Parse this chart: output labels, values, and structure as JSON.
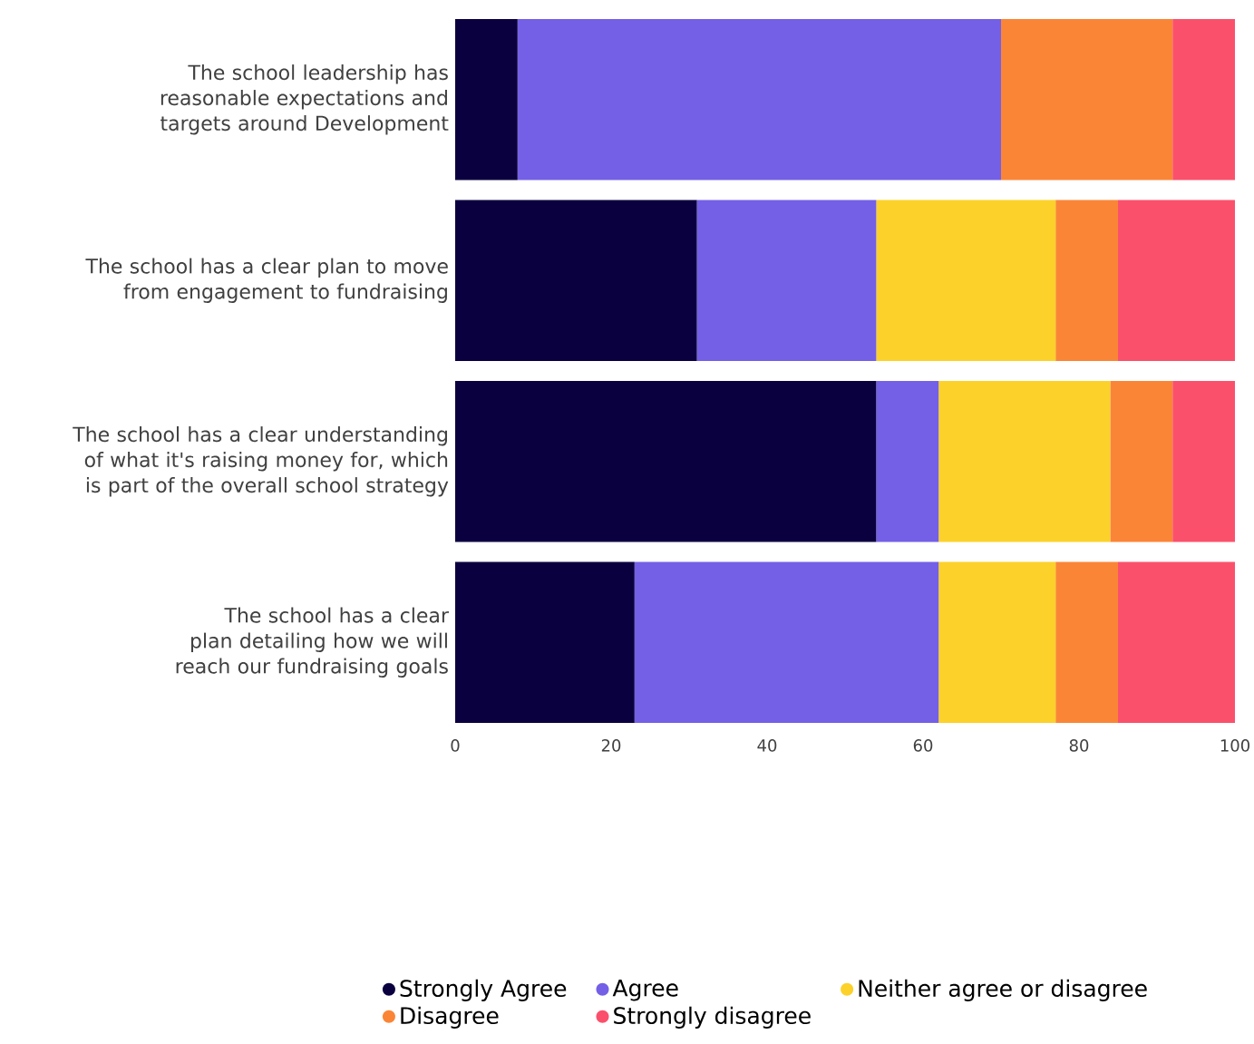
{
  "chart_data": {
    "type": "bar",
    "orientation": "horizontal",
    "stacked": true,
    "categories": [
      "The school leadership has reasonable expectations and targets around Development",
      "The school has a clear plan to move from engagement to fundraising",
      "The school has a clear understanding of what it's raising money for, which is part of the overall school strategy",
      "The school has a clear plan detailing how we will reach our fundraising goals"
    ],
    "series": [
      {
        "name": "Strongly  Agree",
        "color": "#0a0040",
        "values": [
          8,
          31,
          54,
          23
        ]
      },
      {
        "name": "Agree",
        "color": "#7360e6",
        "values": [
          62,
          23,
          8,
          39
        ]
      },
      {
        "name": "Neither agree or disagree",
        "color": "#fcd12a",
        "values": [
          0,
          23,
          22,
          15
        ]
      },
      {
        "name": "Disagree",
        "color": "#fb8536",
        "values": [
          22,
          8,
          8,
          8
        ]
      },
      {
        "name": "Strongly disagree",
        "color": "#fb506b",
        "values": [
          8,
          15,
          8,
          15
        ]
      }
    ],
    "xlim": [
      0,
      100
    ],
    "xticks": [
      0,
      20,
      40,
      60,
      80,
      100
    ],
    "grid": false,
    "legend": "bottom"
  }
}
